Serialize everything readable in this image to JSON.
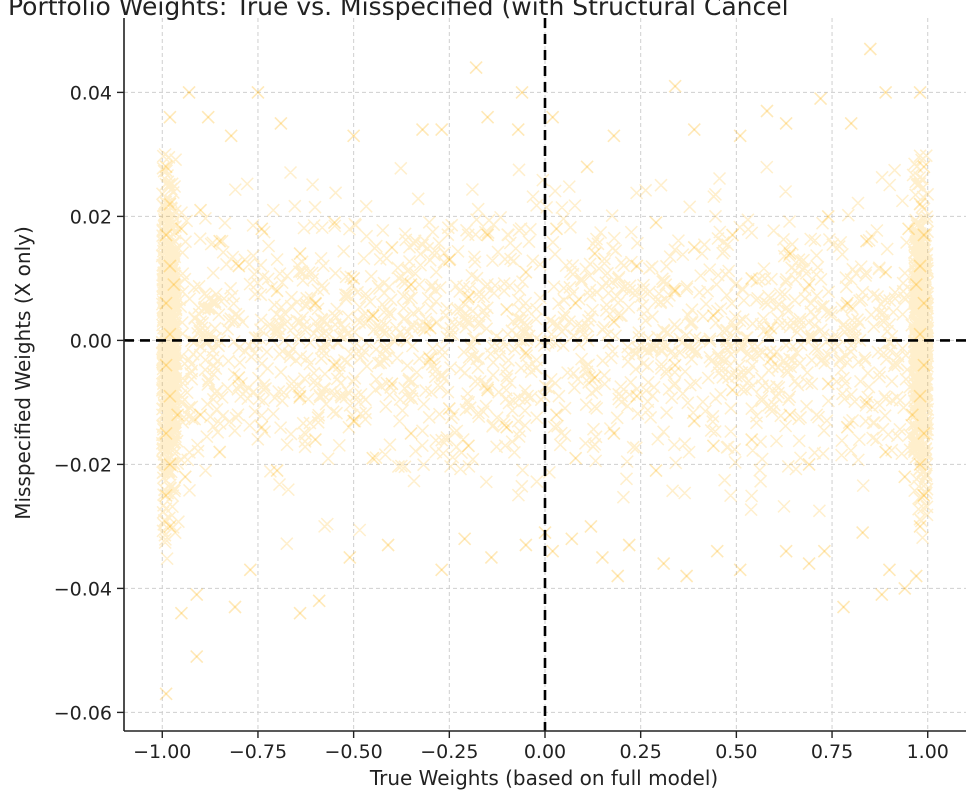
{
  "chart_data": {
    "type": "scatter",
    "title": "Portfolio Weights: True vs. Misspecified (with Structural Cancel",
    "xlabel": "True Weights (based on full model)",
    "ylabel": "Misspecified Weights (X only)",
    "xlim": [
      -1.1,
      1.1
    ],
    "ylim": [
      -0.063,
      0.052
    ],
    "xticks": [
      -1.0,
      -0.75,
      -0.5,
      -0.25,
      0.0,
      0.25,
      0.5,
      0.75,
      1.0
    ],
    "xtick_labels": [
      "−1.00",
      "−0.75",
      "−0.50",
      "−0.25",
      "0.00",
      "0.25",
      "0.50",
      "0.75",
      "1.00"
    ],
    "yticks": [
      -0.06,
      -0.04,
      -0.02,
      0.0,
      0.02,
      0.04
    ],
    "ytick_labels": [
      "−0.06",
      "−0.04",
      "−0.02",
      "0.00",
      "0.02",
      "0.04"
    ],
    "grid": true,
    "reference_lines": [
      {
        "orientation": "horizontal",
        "value": 0.0,
        "style": "dashed",
        "color": "#000000"
      },
      {
        "orientation": "vertical",
        "value": 0.0,
        "style": "dashed",
        "color": "#000000"
      }
    ],
    "marker": "x",
    "marker_color": "#FFB000",
    "marker_opacity": 0.28,
    "series": [
      {
        "points": [
          [
            -0.99,
            -0.057
          ],
          [
            -0.91,
            -0.051
          ],
          [
            -0.95,
            -0.044
          ],
          [
            -0.81,
            -0.043
          ],
          [
            -0.59,
            -0.042
          ],
          [
            -0.64,
            -0.044
          ],
          [
            -0.91,
            -0.041
          ],
          [
            -0.77,
            -0.037
          ],
          [
            -0.51,
            -0.035
          ],
          [
            -0.41,
            -0.033
          ],
          [
            -0.27,
            -0.037
          ],
          [
            -0.21,
            -0.032
          ],
          [
            -0.14,
            -0.035
          ],
          [
            -0.05,
            -0.033
          ],
          [
            0.0,
            -0.031
          ],
          [
            0.02,
            -0.034
          ],
          [
            0.07,
            -0.032
          ],
          [
            0.12,
            -0.03
          ],
          [
            0.15,
            -0.035
          ],
          [
            0.19,
            -0.038
          ],
          [
            0.22,
            -0.033
          ],
          [
            0.31,
            -0.036
          ],
          [
            0.37,
            -0.038
          ],
          [
            0.45,
            -0.034
          ],
          [
            0.51,
            -0.037
          ],
          [
            0.63,
            -0.034
          ],
          [
            0.69,
            -0.036
          ],
          [
            0.73,
            -0.034
          ],
          [
            0.78,
            -0.043
          ],
          [
            0.83,
            -0.031
          ],
          [
            0.9,
            -0.037
          ],
          [
            0.94,
            -0.04
          ],
          [
            0.88,
            -0.041
          ],
          [
            0.97,
            -0.038
          ],
          [
            -0.18,
            0.044
          ],
          [
            -0.15,
            0.036
          ],
          [
            -0.06,
            0.04
          ],
          [
            0.02,
            0.036
          ],
          [
            0.11,
            0.028
          ],
          [
            0.18,
            0.033
          ],
          [
            0.34,
            0.041
          ],
          [
            0.39,
            0.034
          ],
          [
            0.51,
            0.033
          ],
          [
            0.58,
            0.037
          ],
          [
            0.63,
            0.035
          ],
          [
            0.72,
            0.039
          ],
          [
            0.8,
            0.035
          ],
          [
            0.85,
            0.047
          ],
          [
            0.89,
            0.04
          ],
          [
            0.98,
            0.04
          ],
          [
            -0.98,
            0.036
          ],
          [
            -0.93,
            0.04
          ],
          [
            -0.88,
            0.036
          ],
          [
            -0.82,
            0.033
          ],
          [
            -0.75,
            0.04
          ],
          [
            -0.69,
            0.035
          ],
          [
            -0.5,
            0.033
          ],
          [
            -0.32,
            0.034
          ],
          [
            -0.27,
            0.034
          ],
          [
            -0.07,
            0.034
          ],
          [
            -0.9,
            0.021
          ],
          [
            -0.85,
            0.016
          ],
          [
            -0.8,
            0.012
          ],
          [
            -0.74,
            0.018
          ],
          [
            -0.7,
            0.008
          ],
          [
            -0.64,
            0.014
          ],
          [
            -0.6,
            0.006
          ],
          [
            -0.55,
            0.019
          ],
          [
            -0.5,
            0.01
          ],
          [
            -0.45,
            0.004
          ],
          [
            -0.4,
            0.015
          ],
          [
            -0.35,
            0.009
          ],
          [
            -0.3,
            0.002
          ],
          [
            -0.25,
            0.013
          ],
          [
            -0.2,
            0.007
          ],
          [
            -0.15,
            0.017
          ],
          [
            -0.1,
            0.005
          ],
          [
            -0.05,
            0.011
          ],
          [
            0.03,
            0.018
          ],
          [
            0.08,
            0.006
          ],
          [
            0.13,
            0.014
          ],
          [
            0.18,
            0.003
          ],
          [
            0.24,
            0.012
          ],
          [
            0.29,
            0.019
          ],
          [
            0.34,
            0.008
          ],
          [
            0.39,
            0.015
          ],
          [
            0.44,
            0.004
          ],
          [
            0.49,
            0.017
          ],
          [
            0.54,
            0.01
          ],
          [
            0.59,
            0.002
          ],
          [
            0.64,
            0.014
          ],
          [
            0.69,
            0.009
          ],
          [
            0.74,
            0.02
          ],
          [
            0.79,
            0.006
          ],
          [
            0.84,
            0.016
          ],
          [
            0.89,
            0.011
          ],
          [
            -0.9,
            -0.012
          ],
          [
            -0.85,
            -0.018
          ],
          [
            -0.8,
            -0.006
          ],
          [
            -0.74,
            -0.014
          ],
          [
            -0.7,
            -0.021
          ],
          [
            -0.64,
            -0.009
          ],
          [
            -0.6,
            -0.016
          ],
          [
            -0.55,
            -0.004
          ],
          [
            -0.5,
            -0.013
          ],
          [
            -0.45,
            -0.019
          ],
          [
            -0.4,
            -0.007
          ],
          [
            -0.35,
            -0.015
          ],
          [
            -0.3,
            -0.003
          ],
          [
            -0.25,
            -0.011
          ],
          [
            -0.2,
            -0.017
          ],
          [
            -0.15,
            -0.008
          ],
          [
            -0.1,
            -0.014
          ],
          [
            -0.05,
            -0.002
          ],
          [
            0.03,
            -0.012
          ],
          [
            0.08,
            -0.019
          ],
          [
            0.13,
            -0.006
          ],
          [
            0.18,
            -0.015
          ],
          [
            0.24,
            -0.009
          ],
          [
            0.29,
            -0.021
          ],
          [
            0.34,
            -0.004
          ],
          [
            0.39,
            -0.013
          ],
          [
            0.44,
            -0.017
          ],
          [
            0.49,
            -0.008
          ],
          [
            0.54,
            -0.016
          ],
          [
            0.59,
            -0.003
          ],
          [
            0.64,
            -0.012
          ],
          [
            0.69,
            -0.02
          ],
          [
            0.74,
            -0.007
          ],
          [
            0.79,
            -0.014
          ],
          [
            0.84,
            -0.01
          ],
          [
            0.89,
            -0.018
          ],
          [
            -0.99,
            0.028
          ],
          [
            -0.98,
            0.022
          ],
          [
            -0.99,
            0.017
          ],
          [
            -0.98,
            0.012
          ],
          [
            -0.99,
            0.006
          ],
          [
            -0.98,
            0.001
          ],
          [
            -0.99,
            -0.004
          ],
          [
            -0.98,
            -0.009
          ],
          [
            -0.99,
            -0.015
          ],
          [
            -0.98,
            -0.02
          ],
          [
            -0.99,
            -0.025
          ],
          [
            -0.98,
            -0.03
          ],
          [
            -0.97,
            0.009
          ],
          [
            -0.96,
            -0.012
          ],
          [
            -0.95,
            0.018
          ],
          [
            -0.94,
            -0.022
          ],
          [
            0.99,
            0.028
          ],
          [
            0.98,
            0.022
          ],
          [
            0.99,
            0.017
          ],
          [
            0.98,
            0.012
          ],
          [
            0.99,
            0.006
          ],
          [
            0.98,
            0.001
          ],
          [
            0.99,
            -0.004
          ],
          [
            0.98,
            -0.009
          ],
          [
            0.99,
            -0.015
          ],
          [
            0.98,
            -0.02
          ],
          [
            0.99,
            -0.025
          ],
          [
            0.98,
            -0.03
          ],
          [
            0.97,
            0.009
          ],
          [
            0.96,
            -0.012
          ],
          [
            0.95,
            0.018
          ],
          [
            0.94,
            -0.022
          ]
        ]
      }
    ]
  }
}
